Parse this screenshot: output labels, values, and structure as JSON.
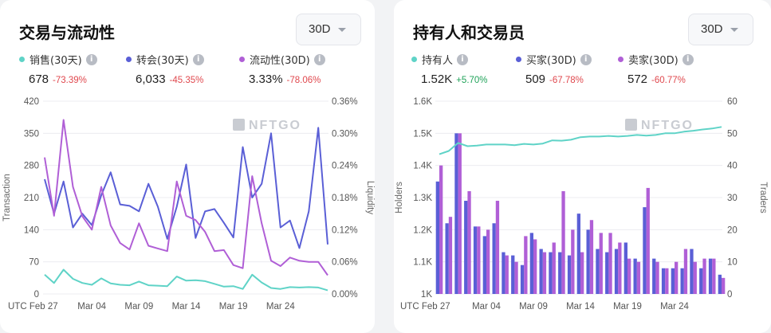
{
  "left": {
    "title": "交易与流动性",
    "range": "30D",
    "stats": [
      {
        "label": "销售(30天)",
        "value": "678",
        "change": "-73.39%",
        "color": "#5fd3c7",
        "dir": "neg"
      },
      {
        "label": "转会(30天)",
        "value": "6,033",
        "change": "-45.35%",
        "color": "#5a5fd6",
        "dir": "neg"
      },
      {
        "label": "流动性(30D)",
        "value": "3.33%",
        "change": "-78.06%",
        "color": "#b05fd6",
        "dir": "neg"
      }
    ],
    "watermark": "NFTGO"
  },
  "right": {
    "title": "持有人和交易员",
    "range": "30D",
    "stats": [
      {
        "label": "持有人",
        "value": "1.52K",
        "change": "+5.70%",
        "color": "#5fd3c7",
        "dir": "pos"
      },
      {
        "label": "买家(30D)",
        "value": "509",
        "change": "-67.78%",
        "color": "#5a5fd6",
        "dir": "neg"
      },
      {
        "label": "卖家(30D)",
        "value": "572",
        "change": "-60.77%",
        "color": "#b05fd6",
        "dir": "neg"
      }
    ],
    "watermark": "NFTGO"
  },
  "chart_data": [
    {
      "type": "line",
      "x_start_label": "UTC Feb 27",
      "tick_labels": [
        "Mar 04",
        "Mar 09",
        "Mar 14",
        "Mar 19",
        "Mar 24"
      ],
      "tick_index": [
        5,
        10,
        15,
        20,
        25
      ],
      "n_points": 31,
      "ylabel": "Transaction",
      "y2label": "Liquidity",
      "ylim": [
        0,
        420
      ],
      "y2lim": [
        0,
        0.36
      ],
      "y_ticks": [
        "0",
        "70",
        "140",
        "210",
        "280",
        "350",
        "420"
      ],
      "y2_ticks": [
        "0.00%",
        "0.06%",
        "0.12%",
        "0.18%",
        "0.24%",
        "0.30%",
        "0.36%"
      ],
      "grid": "horizontal",
      "series": [
        {
          "key": "sales",
          "axis": "left",
          "color": "#5fd3c7",
          "values": [
            42,
            24,
            53,
            33,
            24,
            20,
            34,
            23,
            20,
            19,
            27,
            19,
            18,
            17,
            38,
            29,
            30,
            28,
            22,
            16,
            17,
            11,
            42,
            25,
            13,
            11,
            15,
            14,
            15,
            14,
            8
          ]
        },
        {
          "key": "transfers",
          "axis": "left",
          "color": "#5a5fd6",
          "values": [
            250,
            175,
            245,
            145,
            175,
            150,
            215,
            265,
            195,
            192,
            180,
            240,
            190,
            120,
            190,
            282,
            122,
            180,
            185,
            155,
            123,
            320,
            210,
            240,
            350,
            145,
            160,
            100,
            180,
            362,
            108
          ]
        },
        {
          "key": "liquidity",
          "axis": "right",
          "color": "#b05fd6",
          "values": [
            0.255,
            0.146,
            0.325,
            0.2,
            0.145,
            0.12,
            0.2,
            0.128,
            0.095,
            0.083,
            0.132,
            0.09,
            0.085,
            0.08,
            0.21,
            0.146,
            0.138,
            0.116,
            0.08,
            0.082,
            0.054,
            0.048,
            0.22,
            0.132,
            0.062,
            0.052,
            0.068,
            0.062,
            0.06,
            0.06,
            0.035
          ]
        }
      ]
    },
    {
      "type": "bar+line",
      "x_start_label": "UTC Feb 27",
      "tick_labels": [
        "Mar 04",
        "Mar 09",
        "Mar 14",
        "Mar 19",
        "Mar 24"
      ],
      "tick_index": [
        5,
        10,
        15,
        20,
        25
      ],
      "n_points": 31,
      "ylabel": "Holders",
      "y2label": "Traders",
      "ylim": [
        1000,
        1600
      ],
      "y2lim": [
        0,
        60
      ],
      "y_ticks": [
        "1K",
        "1.1K",
        "1.2K",
        "1.3K",
        "1.4K",
        "1.5K",
        "1.6K"
      ],
      "y2_ticks": [
        "0",
        "10",
        "20",
        "30",
        "40",
        "50",
        "60"
      ],
      "grid": "horizontal",
      "series": [
        {
          "key": "holders",
          "axis": "left",
          "color": "#5fd3c7",
          "type": "line",
          "values": [
            1435,
            1445,
            1470,
            1460,
            1462,
            1465,
            1465,
            1465,
            1463,
            1467,
            1465,
            1468,
            1478,
            1477,
            1480,
            1488,
            1490,
            1490,
            1492,
            1490,
            1492,
            1495,
            1493,
            1495,
            1500,
            1500,
            1505,
            1508,
            1512,
            1515,
            1520
          ]
        },
        {
          "key": "buyers",
          "axis": "right",
          "color": "#5a5fd6",
          "type": "bar",
          "values": [
            35,
            22,
            50,
            29,
            21,
            18,
            22,
            13,
            12,
            9,
            19,
            14,
            13,
            13,
            12,
            25,
            20,
            14,
            13,
            14,
            16,
            11,
            27,
            11,
            8,
            8,
            8,
            14,
            8,
            11,
            6
          ]
        },
        {
          "key": "sellers",
          "axis": "right",
          "color": "#b05fd6",
          "type": "bar",
          "values": [
            40,
            24,
            50,
            32,
            21,
            20,
            29,
            12,
            10,
            18,
            17,
            13,
            16,
            32,
            20,
            13,
            23,
            19,
            19,
            16,
            11,
            10,
            33,
            10,
            8,
            10,
            14,
            10,
            11,
            11,
            5
          ]
        }
      ]
    }
  ]
}
